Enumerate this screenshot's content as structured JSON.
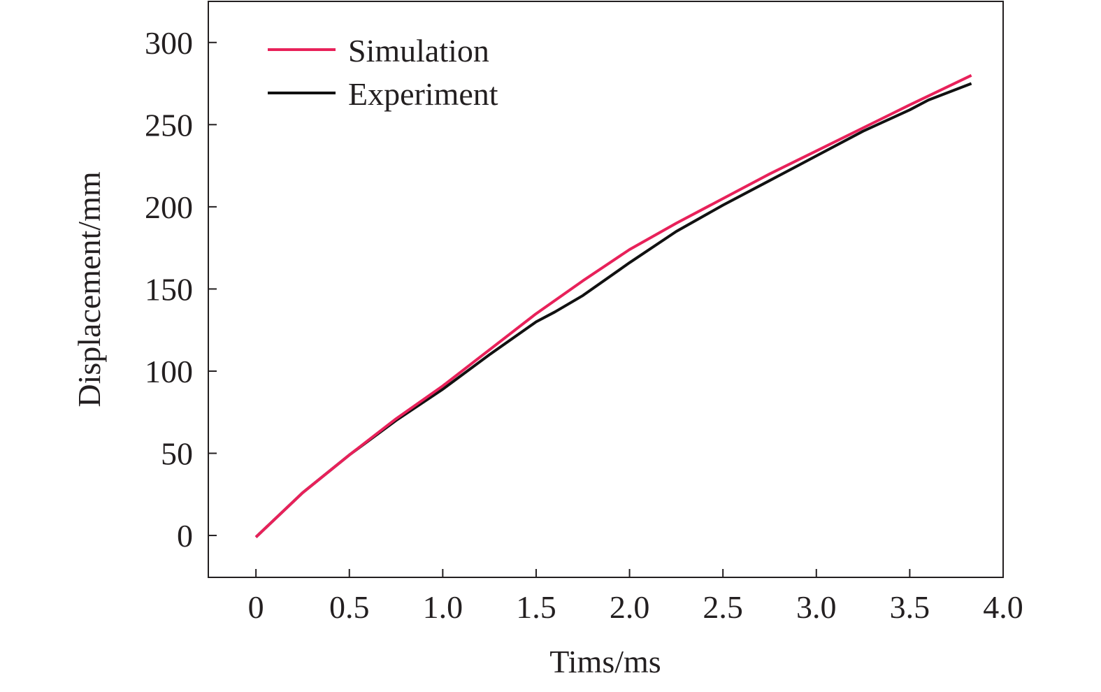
{
  "chart_data": {
    "type": "line",
    "title": "",
    "xlabel": "Tims/ms",
    "ylabel": "Displacement/mm",
    "xlim": [
      -0.255,
      4.0
    ],
    "ylim": [
      -25.5,
      325
    ],
    "xticks": [
      0,
      0.5,
      1.0,
      1.5,
      2.0,
      2.5,
      3.0,
      3.5,
      4.0
    ],
    "xtick_labels": [
      "0",
      "0.5",
      "1.0",
      "1.5",
      "2.0",
      "2.5",
      "3.0",
      "3.5",
      "4.0"
    ],
    "yticks": [
      0,
      50,
      100,
      150,
      200,
      250,
      300
    ],
    "ytick_labels": [
      "0",
      "50",
      "100",
      "150",
      "200",
      "250",
      "300"
    ],
    "grid": false,
    "legend": {
      "placement": "top-left",
      "entries": [
        "Simulation",
        "Experiment"
      ]
    },
    "series": [
      {
        "name": "Simulation",
        "color": "#e8215a",
        "x": [
          0,
          0.25,
          0.5,
          0.75,
          1.0,
          1.25,
          1.5,
          1.75,
          2.0,
          2.25,
          2.5,
          2.75,
          3.0,
          3.25,
          3.5,
          3.83
        ],
        "y": [
          -1,
          26,
          49,
          71,
          91,
          113,
          135,
          155,
          174,
          190,
          205,
          220,
          234,
          248,
          262,
          280
        ]
      },
      {
        "name": "Experiment",
        "color": "#111111",
        "x": [
          0,
          0.25,
          0.5,
          0.75,
          1.0,
          1.25,
          1.5,
          1.6,
          1.75,
          2.0,
          2.25,
          2.5,
          2.75,
          3.0,
          3.25,
          3.5,
          3.6,
          3.83
        ],
        "y": [
          -1,
          26,
          49,
          70,
          89,
          110,
          130,
          136,
          146,
          166,
          185,
          201,
          216,
          231,
          246,
          259,
          265,
          275
        ]
      }
    ]
  }
}
